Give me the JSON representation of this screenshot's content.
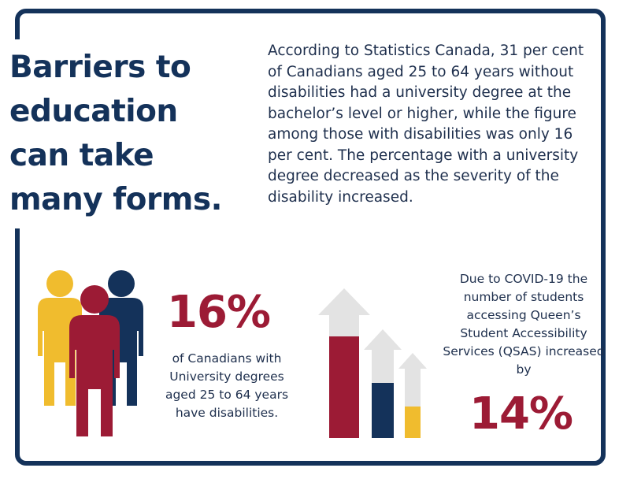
{
  "heading": {
    "line1": "Barriers to",
    "line2": "education",
    "line3": "can take",
    "line4": "many forms."
  },
  "intro_text": "According to Statistics Canada, 31 per cent of Canadians aged 25 to 64 years without disabilities had a university degree at the bachelor’s level or higher, while the figure among those with disabilities was only 16 per cent. The percentage with a university degree decreased as the severity of the disability increased.",
  "stat_left": {
    "value": "16%",
    "caption": "of Canadians with University degrees aged 25 to 64 years have disabilities."
  },
  "stat_right": {
    "caption": "Due to COVID-19 the number of students accessing Queen’s Student Accessibility Services (QSAS) increased by",
    "value": "14%"
  },
  "colors": {
    "navy": "#14325a",
    "crimson": "#9c1b35",
    "gold": "#f0bc2e",
    "gray": "#e3e3e3"
  },
  "icons": [
    "people-group-icon",
    "rising-arrows-icon"
  ]
}
